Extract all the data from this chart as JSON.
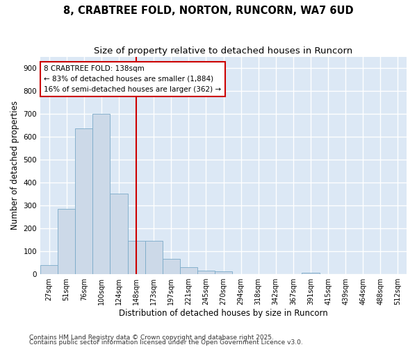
{
  "title_line1": "8, CRABTREE FOLD, NORTON, RUNCORN, WA7 6UD",
  "title_line2": "Size of property relative to detached houses in Runcorn",
  "xlabel": "Distribution of detached houses by size in Runcorn",
  "ylabel": "Number of detached properties",
  "bar_color": "#ccd9e8",
  "bar_edge_color": "#7aaac8",
  "plot_bg_color": "#dce8f5",
  "fig_bg_color": "#ffffff",
  "grid_color": "#ffffff",
  "categories": [
    "27sqm",
    "51sqm",
    "76sqm",
    "100sqm",
    "124sqm",
    "148sqm",
    "173sqm",
    "197sqm",
    "221sqm",
    "245sqm",
    "270sqm",
    "294sqm",
    "318sqm",
    "342sqm",
    "367sqm",
    "391sqm",
    "415sqm",
    "439sqm",
    "464sqm",
    "488sqm",
    "512sqm"
  ],
  "values": [
    40,
    285,
    635,
    700,
    350,
    145,
    145,
    65,
    30,
    15,
    10,
    0,
    0,
    0,
    0,
    5,
    0,
    0,
    0,
    0,
    0
  ],
  "ylim": [
    0,
    950
  ],
  "yticks": [
    0,
    100,
    200,
    300,
    400,
    500,
    600,
    700,
    800,
    900
  ],
  "vline_x": 5,
  "vline_color": "#cc0000",
  "annotation_text": "8 CRABTREE FOLD: 138sqm\n← 83% of detached houses are smaller (1,884)\n16% of semi-detached houses are larger (362) →",
  "annotation_box_color": "#ffffff",
  "annotation_box_edge": "#cc0000",
  "footnote1": "Contains HM Land Registry data © Crown copyright and database right 2025.",
  "footnote2": "Contains public sector information licensed under the Open Government Licence v3.0.",
  "title_fontsize": 10.5,
  "subtitle_fontsize": 9.5,
  "tick_fontsize": 7,
  "label_fontsize": 8.5,
  "annotation_fontsize": 7.5,
  "footnote_fontsize": 6.5
}
